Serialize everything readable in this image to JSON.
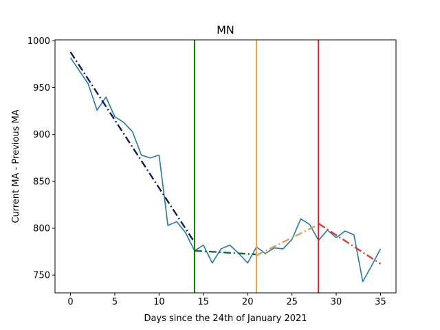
{
  "chart_data": {
    "type": "line",
    "title": "MN",
    "xlabel": "Days since the 24th of January 2021",
    "ylabel": "Current MA - Previous MA",
    "xlim": [
      -1.75,
      36.75
    ],
    "ylim": [
      731,
      1001
    ],
    "grid": false,
    "legend": "none",
    "xticks": [
      0,
      5,
      10,
      15,
      20,
      25,
      30,
      35
    ],
    "yticks": [
      750,
      800,
      850,
      900,
      950,
      1000
    ],
    "series": [
      {
        "style": "solid",
        "color": "#1f77b4",
        "x": [
          0,
          1,
          2,
          3,
          4,
          5,
          6,
          7,
          8,
          9,
          10,
          11,
          12,
          13,
          14,
          15,
          16,
          17,
          18,
          19,
          20,
          21,
          22,
          23,
          24,
          25,
          26,
          27,
          28,
          29,
          30,
          31,
          32,
          33,
          34,
          35
        ],
        "y": [
          982,
          968,
          954,
          926,
          940,
          919,
          913,
          903,
          878,
          875,
          878,
          803,
          807,
          795,
          776,
          782,
          763,
          778,
          782,
          773,
          763,
          780,
          773,
          779,
          778,
          788,
          810,
          804,
          787,
          798,
          790,
          797,
          793,
          743,
          760,
          778
        ]
      },
      {
        "style": "dashdot",
        "color": "#0d1a5c",
        "x": [
          0,
          14
        ],
        "y": [
          988,
          785
        ]
      },
      {
        "style": "dashdot",
        "color": "#176b37",
        "x": [
          14,
          21
        ],
        "y": [
          776,
          772
        ]
      },
      {
        "style": "dashdot",
        "color": "#e0a050",
        "x": [
          21,
          28
        ],
        "y": [
          771,
          804
        ]
      },
      {
        "style": "dashdot",
        "color": "#e03a2e",
        "x": [
          28,
          35
        ],
        "y": [
          805,
          762
        ]
      }
    ],
    "vlines": [
      {
        "x": 14,
        "color": "#008000"
      },
      {
        "x": 21,
        "color": "#eea040"
      },
      {
        "x": 28,
        "color": "#e41a1a"
      }
    ]
  }
}
